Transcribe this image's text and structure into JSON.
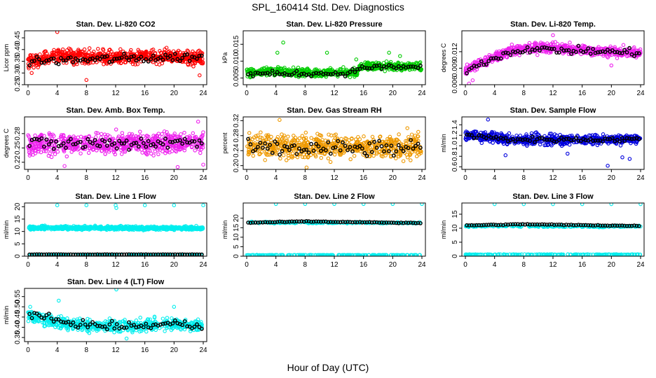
{
  "figure": {
    "title": "SPL_160414  Std. Dev. Diagnostics",
    "xlabel": "Hour of Day (UTC)"
  },
  "chart_data": [
    {
      "type": "scatter",
      "title": "Stan. Dev. Li-820 CO2",
      "ylabel": "Licor ppm",
      "xlim": [
        0,
        24
      ],
      "xticks": [
        0,
        4,
        8,
        12,
        16,
        20,
        24
      ],
      "ylim": [
        0.25,
        0.48
      ],
      "yticks": [
        0.25,
        0.3,
        0.35,
        0.4,
        0.45
      ],
      "ytick_labels": [
        "0.25",
        "0.30",
        "0.35",
        "0.40",
        "0.45"
      ],
      "color": "#ff0000",
      "series": [
        {
          "name": "band",
          "kind": "band",
          "color": "#ff0000",
          "n": 700,
          "center": [
            [
              0,
              0.35
            ],
            [
              4,
              0.37
            ],
            [
              12,
              0.365
            ],
            [
              20,
              0.375
            ],
            [
              24,
              0.36
            ]
          ],
          "spread": 0.03
        },
        {
          "name": "outliers",
          "kind": "points",
          "color": "#ff0000",
          "x": [
            4,
            8,
            0.5,
            23.5
          ],
          "y": [
            0.475,
            0.27,
            0.3,
            0.29
          ]
        },
        {
          "name": "mean",
          "kind": "hourly",
          "color": "#000000",
          "n": 72,
          "center": [
            [
              0,
              0.35
            ],
            [
              24,
              0.37
            ]
          ],
          "spread": 0.02
        }
      ]
    },
    {
      "type": "scatter",
      "title": "Stan. Dev. Li-820 Pressure",
      "ylabel": "kPa",
      "xlim": [
        0,
        24
      ],
      "xticks": [
        0,
        4,
        8,
        12,
        16,
        20,
        24
      ],
      "ylim": [
        0.003,
        0.019
      ],
      "yticks": [
        0.005,
        0.01,
        0.015
      ],
      "ytick_labels": [
        "0.005",
        "0.010",
        "0.015"
      ],
      "color": "#00cc00",
      "series": [
        {
          "name": "band",
          "kind": "band",
          "color": "#00cc00",
          "n": 650,
          "center": [
            [
              0,
              0.0065
            ],
            [
              4,
              0.007
            ],
            [
              10,
              0.0065
            ],
            [
              15,
              0.0068
            ],
            [
              16,
              0.0085
            ],
            [
              24,
              0.0085
            ]
          ],
          "spread": 0.0012
        },
        {
          "name": "outliers",
          "kind": "points",
          "color": "#00cc00",
          "x": [
            5,
            11,
            15,
            4.2,
            19.5,
            21
          ],
          "y": [
            0.0155,
            0.0125,
            0.0105,
            0.0125,
            0.0125,
            0.0115
          ]
        },
        {
          "name": "mean",
          "kind": "hourly",
          "color": "#000000",
          "n": 72,
          "center": [
            [
              0,
              0.0062
            ],
            [
              14,
              0.0064
            ],
            [
              16,
              0.0082
            ],
            [
              24,
              0.0082
            ]
          ],
          "spread": 0.0008
        }
      ]
    },
    {
      "type": "scatter",
      "title": "Stan. Dev. Li-820 Temp.",
      "ylabel": "degrees C",
      "xlim": [
        0,
        24
      ],
      "xticks": [
        0,
        4,
        8,
        12,
        16,
        20,
        24
      ],
      "ylim": [
        0.006,
        0.0158
      ],
      "yticks": [
        0.006,
        0.009,
        0.012
      ],
      "ytick_labels": [
        "0.006",
        "0.009",
        "0.012"
      ],
      "color": "#ee22ee",
      "series": [
        {
          "name": "band",
          "kind": "band",
          "color": "#ee22ee",
          "n": 650,
          "center": [
            [
              0,
              0.0085
            ],
            [
              3,
              0.0105
            ],
            [
              6,
              0.012
            ],
            [
              10,
              0.0128
            ],
            [
              14,
              0.0125
            ],
            [
              20,
              0.012
            ],
            [
              24,
              0.0118
            ]
          ],
          "spread": 0.0009
        },
        {
          "name": "outliers",
          "kind": "points",
          "color": "#ee22ee",
          "x": [
            0.5,
            12,
            20,
            1
          ],
          "y": [
            0.0062,
            0.015,
            0.0095,
            0.0068
          ]
        },
        {
          "name": "mean",
          "kind": "hourly",
          "color": "#000000",
          "n": 72,
          "center": [
            [
              0,
              0.0085
            ],
            [
              4,
              0.011
            ],
            [
              8,
              0.0125
            ],
            [
              24,
              0.0118
            ]
          ],
          "spread": 0.0007
        }
      ]
    },
    {
      "type": "scatter",
      "title": "Stan. Dev. Amb. Box Temp.",
      "ylabel": "degrees C",
      "xlim": [
        0,
        24
      ],
      "xticks": [
        0,
        4,
        8,
        12,
        16,
        20,
        24
      ],
      "ylim": [
        0.205,
        0.315
      ],
      "yticks": [
        0.22,
        0.25,
        0.28
      ],
      "ytick_labels": [
        "0.22",
        "0.25",
        "0.28"
      ],
      "color": "#ee22ee",
      "series": [
        {
          "name": "band",
          "kind": "band",
          "color": "#ee22ee",
          "n": 700,
          "center": [
            [
              0,
              0.258
            ],
            [
              12,
              0.26
            ],
            [
              24,
              0.26
            ]
          ],
          "spread": 0.022
        },
        {
          "name": "outliers",
          "kind": "points",
          "color": "#ee22ee",
          "x": [
            23.3,
            24,
            20.5,
            5
          ],
          "y": [
            0.305,
            0.215,
            0.21,
            0.212
          ]
        },
        {
          "name": "mean",
          "kind": "hourly",
          "color": "#000000",
          "n": 72,
          "center": [
            [
              0,
              0.258
            ],
            [
              24,
              0.262
            ]
          ],
          "spread": 0.015
        }
      ]
    },
    {
      "type": "scatter",
      "title": "Stan. Dev. Gas Stream RH",
      "ylabel": "percent",
      "xlim": [
        0,
        24
      ],
      "xticks": [
        0,
        4,
        8,
        12,
        16,
        20,
        24
      ],
      "ylim": [
        0.19,
        0.33
      ],
      "yticks": [
        0.2,
        0.24,
        0.28,
        0.32
      ],
      "ytick_labels": [
        "0.20",
        "0.24",
        "0.28",
        "0.32"
      ],
      "color": "#ee9900",
      "series": [
        {
          "name": "band",
          "kind": "band",
          "color": "#ee9900",
          "n": 650,
          "center": [
            [
              0,
              0.255
            ],
            [
              24,
              0.25
            ]
          ],
          "spread": 0.032
        },
        {
          "name": "outliers",
          "kind": "points",
          "color": "#ee9900",
          "x": [
            4.5,
            22,
            23.5,
            8.2
          ],
          "y": [
            0.322,
            0.3,
            0.29,
            0.195
          ]
        },
        {
          "name": "mean",
          "kind": "hourly",
          "color": "#000000",
          "n": 72,
          "center": [
            [
              0,
              0.245
            ],
            [
              24,
              0.245
            ]
          ],
          "spread": 0.022
        }
      ]
    },
    {
      "type": "scatter",
      "title": "Stan. Dev. Sample Flow",
      "ylabel": "ml/min",
      "xlim": [
        0,
        24
      ],
      "xticks": [
        0,
        4,
        8,
        12,
        16,
        20,
        24
      ],
      "ylim": [
        0.55,
        1.55
      ],
      "yticks": [
        0.6,
        0.8,
        1.0,
        1.2,
        1.4
      ],
      "ytick_labels": [
        "0.6",
        "0.8",
        "1.0",
        "1.2",
        "1.4"
      ],
      "color": "#0000dd",
      "series": [
        {
          "name": "band",
          "kind": "band",
          "color": "#0000dd",
          "n": 650,
          "center": [
            [
              0,
              1.2
            ],
            [
              6,
              1.12
            ],
            [
              24,
              1.12
            ]
          ],
          "spread": 0.1
        },
        {
          "name": "outliers",
          "kind": "points",
          "color": "#0000dd",
          "x": [
            19.5,
            21.5,
            5.5,
            3.1,
            14,
            22.5
          ],
          "y": [
            0.62,
            0.78,
            0.82,
            1.5,
            0.85,
            0.75
          ]
        },
        {
          "name": "mean",
          "kind": "hourly",
          "color": "#000000",
          "n": 72,
          "center": [
            [
              0,
              1.2
            ],
            [
              6,
              1.12
            ],
            [
              24,
              1.12
            ]
          ],
          "spread": 0.05
        }
      ]
    },
    {
      "type": "scatter",
      "title": "Stan. Dev. Line 1 Flow",
      "ylabel": "ml/min",
      "xlim": [
        0,
        24
      ],
      "xticks": [
        0,
        4,
        8,
        12,
        16,
        20,
        24
      ],
      "ylim": [
        0,
        21.5
      ],
      "yticks": [
        0,
        5,
        10,
        15,
        20
      ],
      "ytick_labels": [
        "0",
        "5",
        "10",
        "15",
        "20"
      ],
      "color": "#00eeee",
      "series": [
        {
          "name": "band",
          "kind": "band",
          "color": "#00eeee",
          "n": 700,
          "center": [
            [
              0,
              11.5
            ],
            [
              24,
              11.3
            ]
          ],
          "spread": 0.7
        },
        {
          "name": "baseline",
          "kind": "band",
          "color": "#00eeee",
          "n": 160,
          "center": [
            [
              0,
              0.5
            ],
            [
              24,
              0.5
            ]
          ],
          "spread": 0.1
        },
        {
          "name": "outliers",
          "kind": "points",
          "color": "#00eeee",
          "x": [
            4,
            8,
            12,
            16,
            20,
            24,
            12.1
          ],
          "y": [
            20.6,
            20.6,
            20.6,
            20.6,
            20.6,
            20.6,
            19.5
          ]
        },
        {
          "name": "mean",
          "kind": "hourly",
          "color": "#000000",
          "n": 72,
          "center": [
            [
              0,
              0.7
            ],
            [
              24,
              0.7
            ]
          ],
          "spread": 0.05
        }
      ]
    },
    {
      "type": "scatter",
      "title": "Stan. Dev. Line 2 Flow",
      "ylabel": "ml/min",
      "xlim": [
        0,
        24
      ],
      "xticks": [
        0,
        4,
        8,
        12,
        16,
        20,
        24
      ],
      "ylim": [
        0,
        28
      ],
      "yticks": [
        0,
        5,
        10,
        15,
        20
      ],
      "ytick_labels": [
        "0",
        "5",
        "10",
        "15",
        "20"
      ],
      "color": "#00eeee",
      "series": [
        {
          "name": "band",
          "kind": "band",
          "color": "#00eeee",
          "n": 200,
          "center": [
            [
              0,
              17.8
            ],
            [
              24,
              17.5
            ]
          ],
          "spread": 0.4
        },
        {
          "name": "baseline",
          "kind": "band",
          "color": "#00eeee",
          "n": 200,
          "center": [
            [
              0,
              0.6
            ],
            [
              24,
              0.6
            ]
          ],
          "spread": 0.1
        },
        {
          "name": "outliers",
          "kind": "points",
          "color": "#00eeee",
          "x": [
            4,
            8,
            12,
            16,
            20,
            24
          ],
          "y": [
            27.5,
            27.5,
            27.5,
            27.5,
            27.5,
            27.5
          ]
        },
        {
          "name": "mean",
          "kind": "hourly",
          "color": "#000000",
          "n": 72,
          "center": [
            [
              0,
              17.6
            ],
            [
              8,
              18.3
            ],
            [
              24,
              17.4
            ]
          ],
          "spread": 0.2
        }
      ]
    },
    {
      "type": "scatter",
      "title": "Stan. Dev. Line 3 Flow",
      "ylabel": "ml/min",
      "xlim": [
        0,
        24
      ],
      "xticks": [
        0,
        4,
        8,
        12,
        16,
        20,
        24
      ],
      "ylim": [
        0,
        19
      ],
      "yticks": [
        0,
        5,
        10,
        15
      ],
      "ytick_labels": [
        "0",
        "5",
        "10",
        "15"
      ],
      "color": "#00eeee",
      "series": [
        {
          "name": "band",
          "kind": "band",
          "color": "#00eeee",
          "n": 200,
          "center": [
            [
              0,
              10.8
            ],
            [
              24,
              10.6
            ]
          ],
          "spread": 0.3
        },
        {
          "name": "baseline",
          "kind": "band",
          "color": "#00eeee",
          "n": 200,
          "center": [
            [
              0,
              0.6
            ],
            [
              24,
              0.6
            ]
          ],
          "spread": 0.1
        },
        {
          "name": "outliers",
          "kind": "points",
          "color": "#00eeee",
          "x": [
            4,
            8,
            12,
            16,
            20,
            24
          ],
          "y": [
            18.6,
            18.6,
            18.6,
            18.6,
            18.6,
            18.6
          ]
        },
        {
          "name": "mean",
          "kind": "hourly",
          "color": "#000000",
          "n": 72,
          "center": [
            [
              0,
              11
            ],
            [
              8,
              11.4
            ],
            [
              24,
              10.8
            ]
          ],
          "spread": 0.15
        }
      ]
    },
    {
      "type": "scatter",
      "title": "Stan. Dev. Line 4 (LT) Flow",
      "ylabel": "ml/min",
      "xlim": [
        0,
        24
      ],
      "xticks": [
        0,
        4,
        8,
        12,
        16,
        20,
        24
      ],
      "ylim": [
        0.33,
        0.59
      ],
      "yticks": [
        0.35,
        0.4,
        0.45,
        0.5,
        0.55
      ],
      "ytick_labels": [
        "0.35",
        "0.40",
        "0.45",
        "0.50",
        "0.55"
      ],
      "color": "#00eeee",
      "series": [
        {
          "name": "band",
          "kind": "band",
          "color": "#00eeee",
          "n": 600,
          "center": [
            [
              0,
              0.46
            ],
            [
              4,
              0.42
            ],
            [
              8,
              0.41
            ],
            [
              14,
              0.405
            ],
            [
              20,
              0.415
            ],
            [
              24,
              0.41
            ]
          ],
          "spread": 0.03
        },
        {
          "name": "outliers",
          "kind": "points",
          "color": "#00eeee",
          "x": [
            12.1,
            4.2,
            20,
            0.3,
            13.5
          ],
          "y": [
            0.585,
            0.53,
            0.5,
            0.5,
            0.345
          ]
        },
        {
          "name": "mean",
          "kind": "hourly",
          "color": "#000000",
          "n": 72,
          "center": [
            [
              0,
              0.47
            ],
            [
              4,
              0.43
            ],
            [
              10,
              0.405
            ],
            [
              16,
              0.405
            ],
            [
              20,
              0.42
            ],
            [
              24,
              0.4
            ]
          ],
          "spread": 0.018
        }
      ]
    }
  ]
}
